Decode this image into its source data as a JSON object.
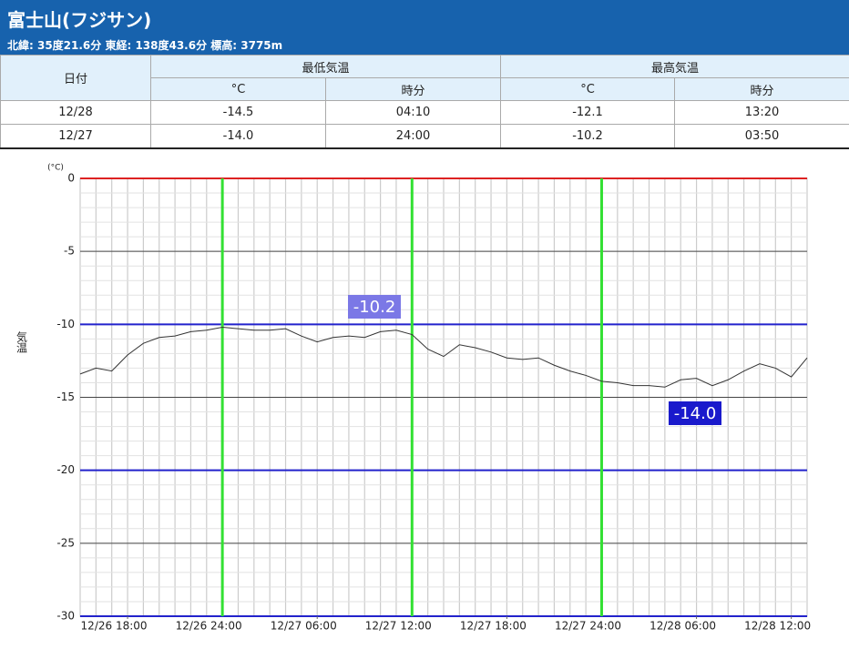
{
  "header": {
    "title": "富士山(フジサン)",
    "subtitle": "北緯: 35度21.6分 東経: 138度43.6分 標高: 3775m"
  },
  "table": {
    "headers": [
      "日付",
      "最低気温",
      "最高気温"
    ],
    "subheaders": [
      "°C",
      "時分",
      "°C",
      "時分"
    ],
    "rows": [
      [
        "12/28",
        "-14.5",
        "04:10",
        "-12.1",
        "13:20"
      ],
      [
        "12/27",
        "-14.0",
        "24:00",
        "-10.2",
        "03:50"
      ]
    ]
  },
  "chart_data": {
    "type": "line",
    "ylabel": "気温",
    "yunit": "(°C)",
    "color": "#333333",
    "x": [
      15,
      16,
      17,
      18,
      19,
      20,
      21,
      22,
      23,
      24,
      25,
      26,
      27,
      28,
      29,
      30,
      31,
      32,
      33,
      34,
      35,
      36,
      37,
      38,
      39,
      40,
      41,
      42,
      43,
      44,
      45,
      46,
      47,
      48,
      49,
      50,
      51,
      52,
      53,
      54,
      55,
      56,
      57,
      58,
      59,
      60,
      61
    ],
    "values": [
      -13.4,
      -13.0,
      -13.2,
      -12.1,
      -11.3,
      -10.9,
      -10.8,
      -10.5,
      -10.4,
      -10.2,
      -10.3,
      -10.4,
      -10.4,
      -10.3,
      -10.8,
      -11.2,
      -10.9,
      -10.8,
      -10.9,
      -10.5,
      -10.4,
      -10.7,
      -11.7,
      -12.2,
      -11.4,
      -11.6,
      -11.9,
      -12.3,
      -12.4,
      -12.3,
      -12.8,
      -13.2,
      -13.5,
      -13.9,
      -14.0,
      -14.2,
      -14.2,
      -14.3,
      -13.8,
      -13.7,
      -14.2,
      -13.8,
      -13.2,
      -12.7,
      -13.0,
      -13.6,
      -12.3
    ],
    "xlim": [
      15,
      61
    ],
    "xticks": [
      {
        "value": 18,
        "label": "12/26 18:00"
      },
      {
        "value": 24,
        "label": "12/26 24:00"
      },
      {
        "value": 30,
        "label": "12/27 06:00"
      },
      {
        "value": 36,
        "label": "12/27 12:00"
      },
      {
        "value": 42,
        "label": "12/27 18:00"
      },
      {
        "value": 48,
        "label": "12/27 24:00"
      },
      {
        "value": 54,
        "label": "12/28 06:00"
      },
      {
        "value": 60,
        "label": "12/28 12:00"
      }
    ],
    "xtick_colors": [
      null,
      "#33e033",
      null,
      "#33e033",
      null,
      "#33e033",
      null,
      null
    ],
    "ylim": [
      -30,
      0
    ],
    "yticks": [
      0,
      -5,
      -10,
      -15,
      -20,
      -25,
      -30
    ],
    "ytick_colors": [
      "#dd2222",
      "#444444",
      "#2222cc",
      "#444444",
      "#2222cc",
      "#444444",
      "#2222cc"
    ],
    "annotations": [
      {
        "text": "-10.2",
        "color": "#7b78e6"
      },
      {
        "text": "-14.0",
        "color": "#1a1acc"
      }
    ]
  }
}
